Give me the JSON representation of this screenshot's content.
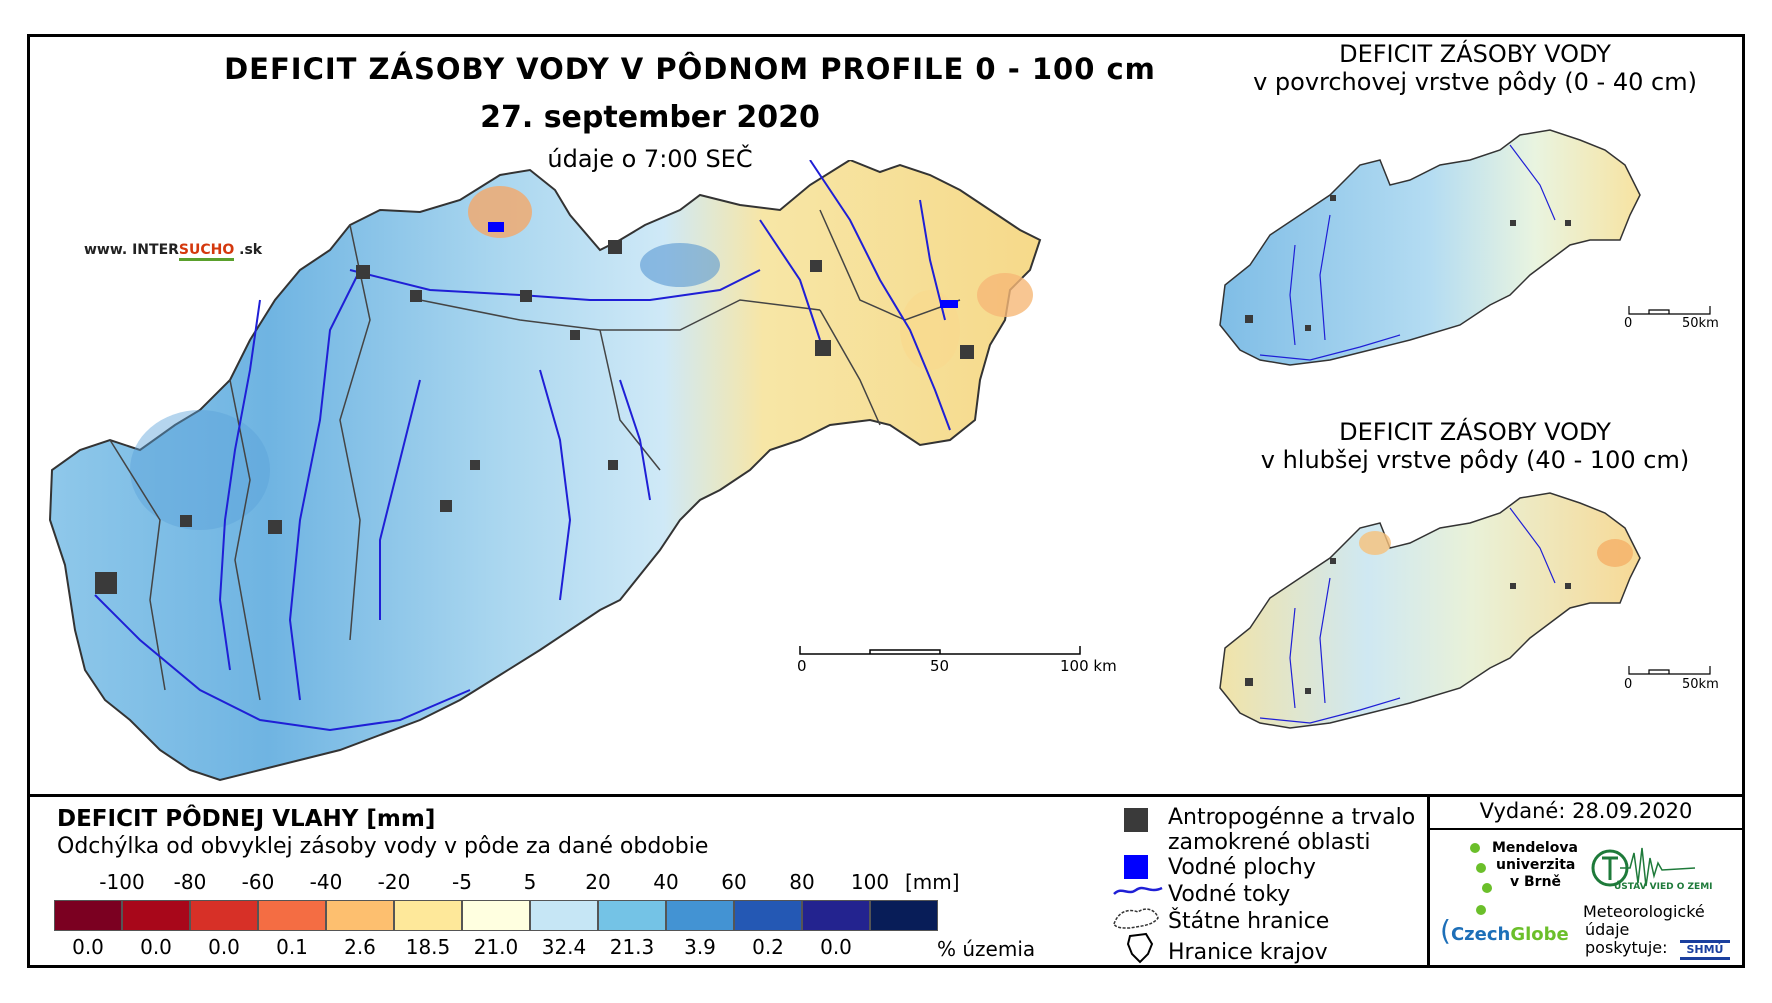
{
  "main_map": {
    "title": "DEFICIT ZÁSOBY VODY V PÔDNOM PROFILE 0 - 100 cm",
    "date": "27. september 2020",
    "time": "údaje o 7:00 SEČ",
    "website_prefix": "www. INTER",
    "website_highlight": "SUCHO",
    "website_suffix": " .sk",
    "scale_labels": [
      "0",
      "50",
      "100 km"
    ]
  },
  "inset_top": {
    "title_line1": "DEFICIT ZÁSOBY VODY",
    "title_line2": "v povrchovej vrstve pôdy (0 - 40 cm)",
    "scale_labels": [
      "0",
      "50km"
    ]
  },
  "inset_bottom": {
    "title_line1": "DEFICIT ZÁSOBY VODY",
    "title_line2": "v hlubšej vrstve pôdy (40 - 100 cm)",
    "scale_labels": [
      "0",
      "50km"
    ]
  },
  "legend": {
    "title": "DEFICIT PÔDNEJ VLAHY [mm]",
    "subtitle": "Odchýlka od obvyklej zásoby vody v pôde za dané obdobie",
    "unit": "[mm]",
    "breaks": [
      "-100",
      "-80",
      "-60",
      "-40",
      "-20",
      "-5",
      "5",
      "20",
      "40",
      "60",
      "80",
      "100"
    ],
    "colors": [
      "#7b0021",
      "#a8071a",
      "#d73027",
      "#f46d43",
      "#fdbf6f",
      "#fee89a",
      "#ffffe0",
      "#c6e6f5",
      "#74c3e6",
      "#4393d3",
      "#2458b4",
      "#23238f",
      "#081d58"
    ],
    "percent": [
      "0.0",
      "0.0",
      "0.0",
      "0.1",
      "2.6",
      "18.5",
      "21.0",
      "32.4",
      "21.3",
      "3.9",
      "0.2",
      "0.0"
    ],
    "percent_label": "% územia"
  },
  "symbols": {
    "urban_line1": "Antropogénne a trvalo",
    "urban_line2": "zamokrené oblasti",
    "water": "Vodné plochy",
    "rivers": "Vodné toky",
    "state_border": "Štátne hranice",
    "region_border": "Hranice krajov",
    "urban_color": "#3a3a3a",
    "water_color": "#0000ff",
    "river_color": "#1f1fd6"
  },
  "credits": {
    "issued": "Vydané: 28.09.2020",
    "mendel": [
      "Mendelova",
      "univerzita",
      "v Brně"
    ],
    "czechglobe_a": "Czech",
    "czechglobe_b": "Globe",
    "uvz": "ÚSTAV VIED O ZEMI",
    "meteo": [
      "Meteorologické",
      "údaje",
      "poskytuje:"
    ],
    "shmu": "SHMÚ"
  }
}
